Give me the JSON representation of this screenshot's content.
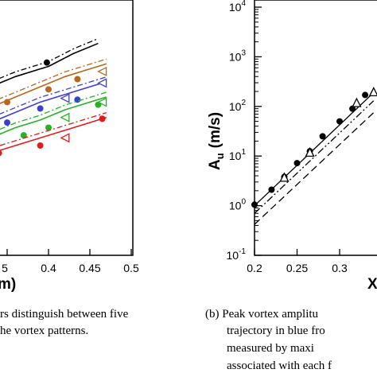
{
  "chart_data": [
    {
      "type": "scatter",
      "xlabel": "m)",
      "xticks": [
        "5",
        "0.4",
        "0.45",
        "0.5"
      ],
      "colors": [
        "#000000",
        "#b8671b",
        "#3b3fd6",
        "#25b325",
        "#e41a1a"
      ],
      "series": [
        {
          "color": "#000000",
          "line": [
            [
              0.3,
              0.62
            ],
            [
              0.33,
              0.66
            ],
            [
              0.36,
              0.7
            ],
            [
              0.39,
              0.73
            ],
            [
              0.4,
              0.74
            ],
            [
              0.43,
              0.79
            ],
            [
              0.46,
              0.83
            ]
          ],
          "dots": [
            [
              0.398,
              0.755
            ]
          ]
        },
        {
          "color": "#b8671b",
          "line": [
            [
              0.3,
              0.53
            ],
            [
              0.33,
              0.58
            ],
            [
              0.36,
              0.62
            ],
            [
              0.39,
              0.66
            ],
            [
              0.42,
              0.7
            ],
            [
              0.45,
              0.73
            ],
            [
              0.47,
              0.75
            ]
          ],
          "dots": [
            [
              0.31,
              0.54
            ],
            [
              0.35,
              0.6
            ],
            [
              0.4,
              0.65
            ],
            [
              0.435,
              0.69
            ]
          ],
          "tris": [
            [
              0.465,
              0.72
            ]
          ]
        },
        {
          "color": "#3b3fd6",
          "line": [
            [
              0.3,
              0.48
            ],
            [
              0.33,
              0.52
            ],
            [
              0.36,
              0.56
            ],
            [
              0.39,
              0.6
            ],
            [
              0.42,
              0.63
            ],
            [
              0.45,
              0.66
            ],
            [
              0.47,
              0.68
            ]
          ],
          "dots": [
            [
              0.33,
              0.5
            ],
            [
              0.35,
              0.52
            ],
            [
              0.39,
              0.575
            ],
            [
              0.435,
              0.61
            ]
          ],
          "tris": [
            [
              0.42,
              0.615
            ],
            [
              0.465,
              0.675
            ]
          ]
        },
        {
          "color": "#25b325",
          "line": [
            [
              0.3,
              0.43
            ],
            [
              0.33,
              0.46
            ],
            [
              0.36,
              0.5
            ],
            [
              0.39,
              0.53
            ],
            [
              0.42,
              0.57
            ],
            [
              0.45,
              0.6
            ],
            [
              0.47,
              0.62
            ]
          ],
          "dots": [
            [
              0.33,
              0.44
            ],
            [
              0.37,
              0.47
            ],
            [
              0.4,
              0.5
            ],
            [
              0.46,
              0.59
            ]
          ],
          "tris": [
            [
              0.42,
              0.54
            ],
            [
              0.465,
              0.6
            ]
          ]
        },
        {
          "color": "#e41a1a",
          "line": [
            [
              0.3,
              0.37
            ],
            [
              0.33,
              0.4
            ],
            [
              0.36,
              0.43
            ],
            [
              0.39,
              0.46
            ],
            [
              0.42,
              0.49
            ],
            [
              0.45,
              0.52
            ],
            [
              0.47,
              0.54
            ]
          ],
          "dots": [
            [
              0.34,
              0.4
            ],
            [
              0.39,
              0.43
            ],
            [
              0.465,
              0.535
            ]
          ],
          "tris": [
            [
              0.42,
              0.46
            ]
          ]
        }
      ]
    },
    {
      "type": "line",
      "ylabel": "A",
      "ylabel_sub": "u",
      "ylabel_units": "(m/s)",
      "xlabel": "X",
      "yscale": "log",
      "ylim": [
        0.1,
        10000
      ],
      "xlim": [
        0.2,
        0.35
      ],
      "xticks": [
        "0.2",
        "0.25",
        "0.3",
        "0.3"
      ],
      "yticks_exp": [
        "4",
        "3",
        "2",
        "1",
        "0",
        "-1"
      ],
      "yticks_base": "10",
      "series": [
        {
          "style": "solid",
          "x": [
            0.2,
            0.34
          ],
          "y": [
            1.0,
            190
          ]
        },
        {
          "style": "dashdot",
          "x": [
            0.2,
            0.34
          ],
          "y": [
            0.7,
            130
          ]
        },
        {
          "style": "dashed",
          "x": [
            0.2,
            0.34
          ],
          "y": [
            0.42,
            75
          ]
        }
      ],
      "markers": {
        "dots": [
          [
            0.2,
            1.05
          ],
          [
            0.22,
            2.1
          ],
          [
            0.235,
            3.8
          ],
          [
            0.25,
            7.2
          ],
          [
            0.265,
            12.5
          ],
          [
            0.28,
            25
          ],
          [
            0.3,
            50
          ],
          [
            0.315,
            90
          ],
          [
            0.33,
            170
          ]
        ],
        "tris": [
          [
            0.235,
            3.6
          ],
          [
            0.265,
            11.5
          ],
          [
            0.32,
            115
          ],
          [
            0.34,
            190
          ]
        ]
      }
    }
  ],
  "captions": {
    "left": [
      "rs distinguish between five",
      "he vortex patterns."
    ],
    "right": [
      "(b)  Peak vortex amplitu",
      "trajectory in blue fro",
      "measured  by  maxi",
      "associated with each f"
    ]
  }
}
